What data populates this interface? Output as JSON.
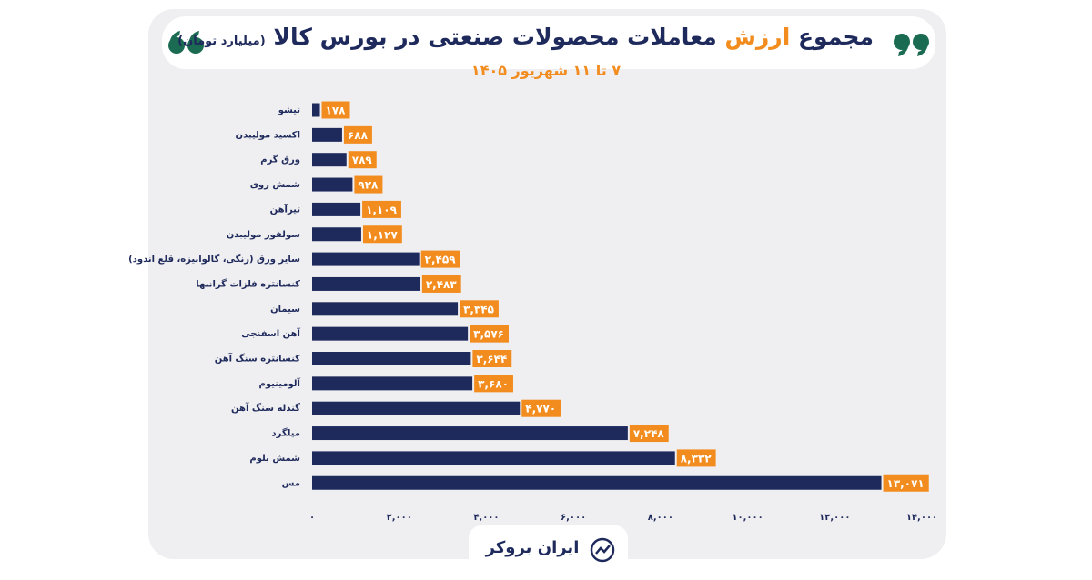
{
  "header": {
    "title_parts": [
      "مجموع",
      "ارزش",
      "معاملات محصولات صنعتی در بورس کالا"
    ],
    "unit": "(میلیارد تومان)",
    "date": "۷ تا ۱۱ شهریور ۱۴۰۵"
  },
  "chart_data": {
    "type": "bar",
    "orientation": "horizontal",
    "bar_color": "#1f2a5c",
    "label_color": "#f28c1e",
    "categories": [
      "تیشو",
      "اکسید مولیبدن",
      "ورق گرم",
      "شمش روی",
      "تیرآهن",
      "سولفور مولیبدن",
      "سایر ورق (رنگی، گالوانیزه، قلع اندود)",
      "کنسانتره فلزات گرانبها",
      "سیمان",
      "آهن اسفنجی",
      "کنسانتره سنگ آهن",
      "آلومینیوم",
      "گندله سنگ آهن",
      "میلگرد",
      "شمش بلوم",
      "مس"
    ],
    "values": [
      178,
      688,
      789,
      928,
      1109,
      1127,
      2459,
      2483,
      3345,
      3576,
      3644,
      3680,
      4770,
      7248,
      8332,
      13071
    ],
    "value_labels": [
      "۱۷۸",
      "۶۸۸",
      "۷۸۹",
      "۹۲۸",
      "۱,۱۰۹",
      "۱,۱۲۷",
      "۲,۴۵۹",
      "۲,۴۸۳",
      "۳,۳۴۵",
      "۳,۵۷۶",
      "۳,۶۴۴",
      "۳,۶۸۰",
      "۴,۷۷۰",
      "۷,۲۴۸",
      "۸,۳۳۲",
      "۱۳,۰۷۱"
    ],
    "xlim": [
      0,
      14000
    ],
    "xticks": [
      {
        "value": 0,
        "label": "۰"
      },
      {
        "value": 2000,
        "label": "۲,۰۰۰"
      },
      {
        "value": 4000,
        "label": "۴,۰۰۰"
      },
      {
        "value": 6000,
        "label": "۶,۰۰۰"
      },
      {
        "value": 8000,
        "label": "۸,۰۰۰"
      },
      {
        "value": 10000,
        "label": "۱۰,۰۰۰"
      },
      {
        "value": 12000,
        "label": "۱۲,۰۰۰"
      },
      {
        "value": 14000,
        "label": "۱۴,۰۰۰"
      }
    ]
  },
  "footer": {
    "logo": "ایران بروکر"
  }
}
